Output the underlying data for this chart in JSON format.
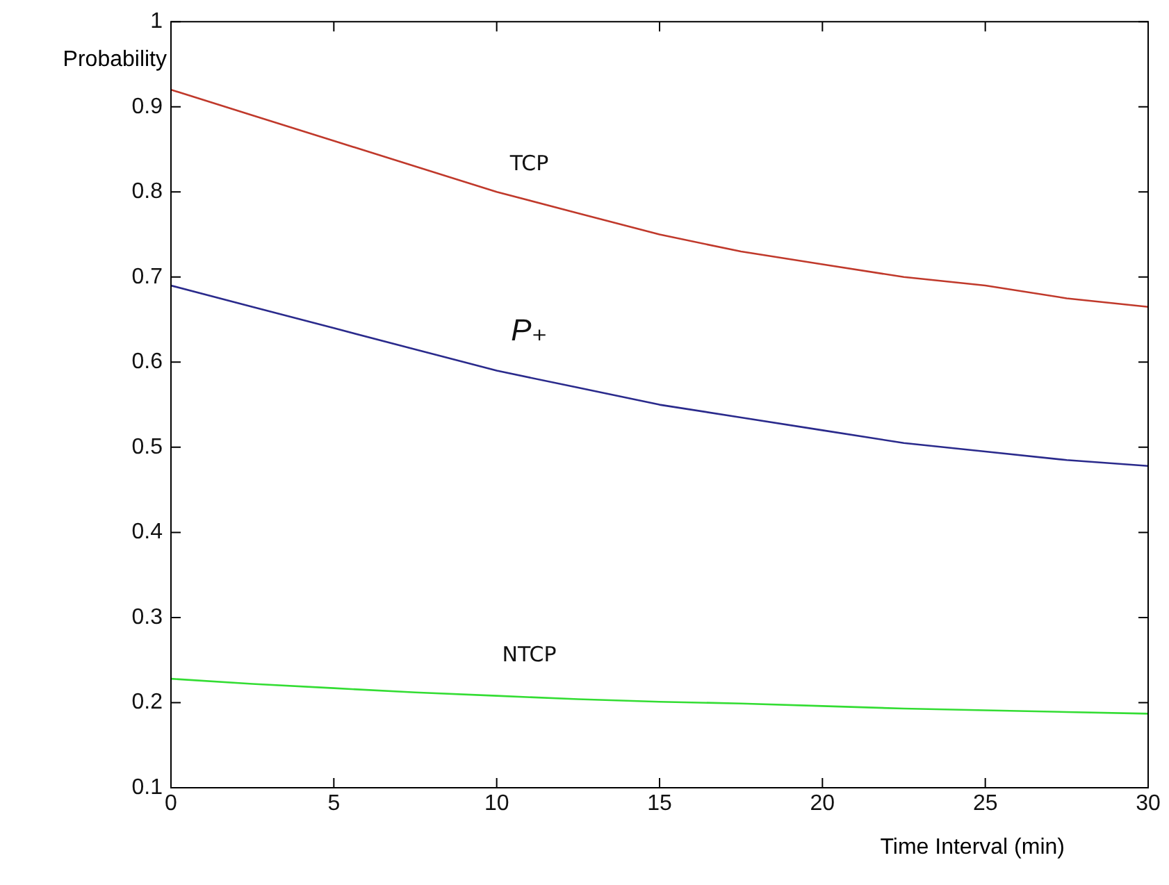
{
  "chart_data": {
    "type": "line",
    "xlabel": "Time Interval (min)",
    "ylabel": "Probability",
    "x": [
      0,
      2.5,
      5,
      7.5,
      10,
      12.5,
      15,
      17.5,
      20,
      22.5,
      25,
      27.5,
      30
    ],
    "series": [
      {
        "name": "TCP",
        "color": "#c0392b",
        "values": [
          0.92,
          0.89,
          0.86,
          0.83,
          0.8,
          0.775,
          0.75,
          0.73,
          0.715,
          0.7,
          0.69,
          0.675,
          0.665
        ]
      },
      {
        "name": "P₊",
        "color": "#2a2a8c",
        "values": [
          0.69,
          0.665,
          0.64,
          0.615,
          0.59,
          0.57,
          0.55,
          0.535,
          0.52,
          0.505,
          0.495,
          0.485,
          0.478
        ]
      },
      {
        "name": "NTCP",
        "color": "#33dd33",
        "values": [
          0.228,
          0.222,
          0.217,
          0.212,
          0.208,
          0.204,
          0.201,
          0.199,
          0.196,
          0.193,
          0.191,
          0.189,
          0.187
        ]
      }
    ],
    "xlim": [
      0,
      30
    ],
    "xticks": [
      0,
      5,
      10,
      15,
      20,
      25,
      30
    ],
    "ylim": [
      0.1,
      1
    ],
    "yticks": [
      0.1,
      0.2,
      0.3,
      0.4,
      0.5,
      0.6,
      0.7,
      0.8,
      0.9,
      1
    ],
    "grid": false,
    "legend": false,
    "marker": "none",
    "line_style": "solid"
  }
}
